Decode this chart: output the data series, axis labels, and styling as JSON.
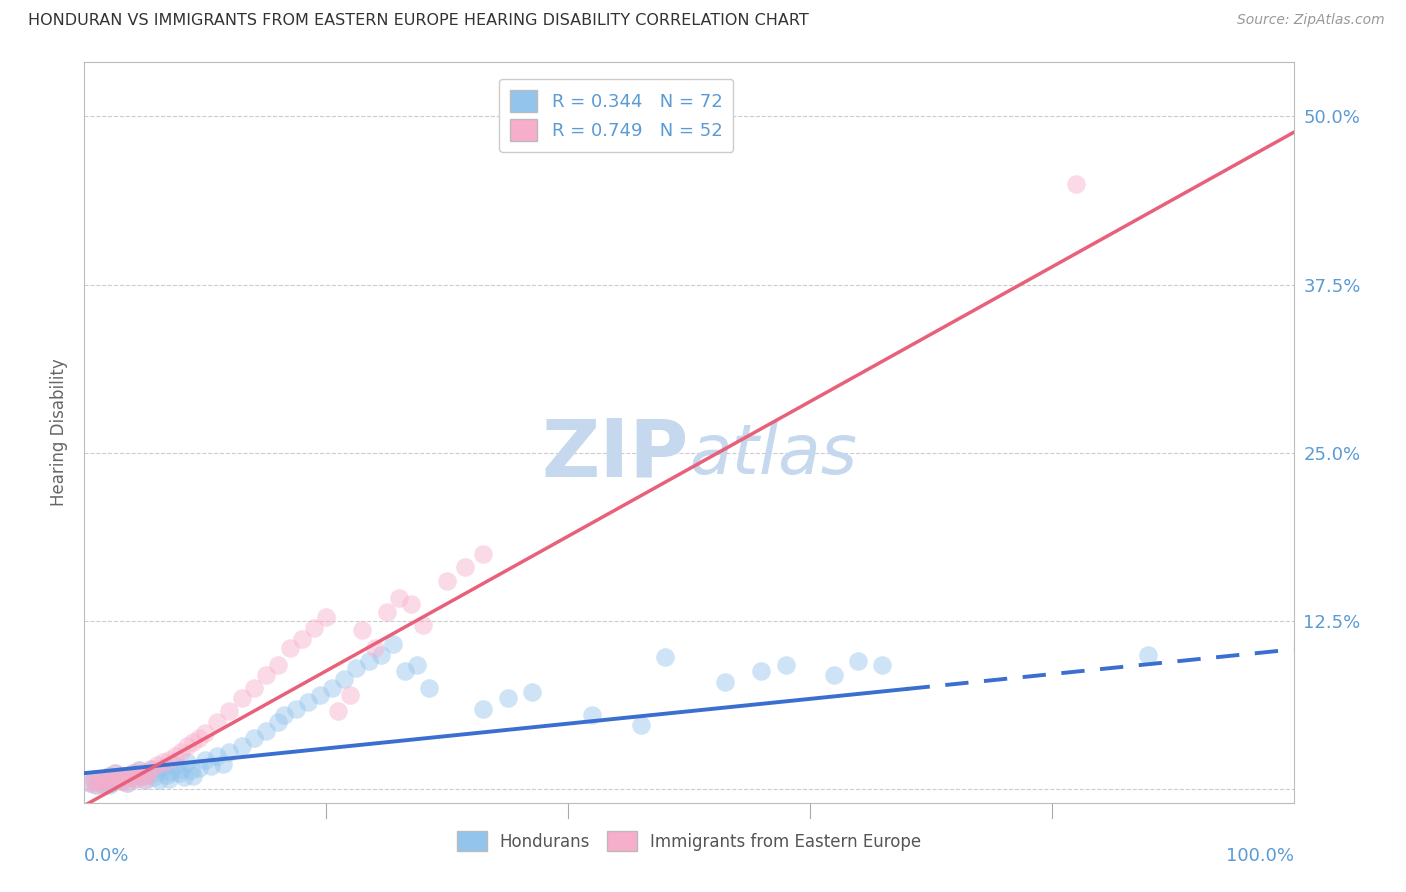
{
  "title": "HONDURAN VS IMMIGRANTS FROM EASTERN EUROPE HEARING DISABILITY CORRELATION CHART",
  "source": "Source: ZipAtlas.com",
  "ylabel": "Hearing Disability",
  "yticks": [
    0.0,
    0.125,
    0.25,
    0.375,
    0.5
  ],
  "ytick_labels": [
    "",
    "12.5%",
    "25.0%",
    "37.5%",
    "50.0%"
  ],
  "xlim": [
    0.0,
    1.0
  ],
  "ylim": [
    -0.01,
    0.54
  ],
  "legend_r1": "R = 0.344",
  "legend_n1": "N = 72",
  "legend_r2": "R = 0.749",
  "legend_n2": "N = 52",
  "color_blue": "#93C4EC",
  "color_pink": "#F7AECB",
  "color_blue_line": "#3A6FD0",
  "color_pink_line": "#E8607A",
  "color_title": "#333333",
  "color_axis_labels": "#5B9BD5",
  "watermark_color": "#C5D8EE",
  "background_color": "#FFFFFF",
  "blue_line_x_solid_end": 0.68,
  "blue_line_slope": 0.092,
  "blue_line_intercept": 0.012,
  "pink_line_slope": 0.5,
  "pink_line_intercept": -0.012,
  "hondurans_x": [
    0.005,
    0.008,
    0.01,
    0.012,
    0.015,
    0.018,
    0.02,
    0.022,
    0.025,
    0.028,
    0.03,
    0.032,
    0.035,
    0.038,
    0.04,
    0.042,
    0.045,
    0.048,
    0.05,
    0.052,
    0.055,
    0.058,
    0.06,
    0.062,
    0.065,
    0.068,
    0.07,
    0.072,
    0.075,
    0.078,
    0.08,
    0.082,
    0.085,
    0.088,
    0.09,
    0.095,
    0.1,
    0.105,
    0.11,
    0.115,
    0.12,
    0.13,
    0.14,
    0.15,
    0.16,
    0.165,
    0.175,
    0.185,
    0.195,
    0.205,
    0.215,
    0.225,
    0.235,
    0.245,
    0.255,
    0.265,
    0.275,
    0.285,
    0.33,
    0.35,
    0.37,
    0.42,
    0.46,
    0.48,
    0.53,
    0.56,
    0.58,
    0.62,
    0.64,
    0.66,
    0.88,
    0.02
  ],
  "hondurans_y": [
    0.005,
    0.008,
    0.003,
    0.006,
    0.004,
    0.007,
    0.01,
    0.005,
    0.012,
    0.008,
    0.006,
    0.01,
    0.005,
    0.009,
    0.012,
    0.008,
    0.014,
    0.01,
    0.007,
    0.011,
    0.015,
    0.009,
    0.013,
    0.007,
    0.016,
    0.011,
    0.008,
    0.013,
    0.018,
    0.012,
    0.015,
    0.009,
    0.02,
    0.014,
    0.01,
    0.016,
    0.022,
    0.017,
    0.025,
    0.019,
    0.028,
    0.032,
    0.038,
    0.043,
    0.05,
    0.055,
    0.06,
    0.065,
    0.07,
    0.075,
    0.082,
    0.09,
    0.095,
    0.1,
    0.108,
    0.088,
    0.092,
    0.075,
    0.06,
    0.068,
    0.072,
    0.055,
    0.048,
    0.098,
    0.08,
    0.088,
    0.092,
    0.085,
    0.095,
    0.092,
    0.1,
    0.003
  ],
  "eastern_europe_x": [
    0.005,
    0.008,
    0.01,
    0.012,
    0.015,
    0.018,
    0.02,
    0.022,
    0.025,
    0.028,
    0.03,
    0.032,
    0.035,
    0.038,
    0.04,
    0.042,
    0.045,
    0.048,
    0.05,
    0.052,
    0.055,
    0.06,
    0.065,
    0.07,
    0.075,
    0.08,
    0.085,
    0.09,
    0.095,
    0.1,
    0.11,
    0.12,
    0.13,
    0.14,
    0.15,
    0.16,
    0.17,
    0.18,
    0.19,
    0.2,
    0.21,
    0.22,
    0.23,
    0.24,
    0.25,
    0.26,
    0.27,
    0.28,
    0.3,
    0.315,
    0.33,
    0.82
  ],
  "eastern_europe_y": [
    0.005,
    0.008,
    0.003,
    0.006,
    0.004,
    0.007,
    0.01,
    0.005,
    0.012,
    0.008,
    0.006,
    0.01,
    0.005,
    0.009,
    0.012,
    0.008,
    0.014,
    0.01,
    0.007,
    0.011,
    0.015,
    0.018,
    0.02,
    0.022,
    0.025,
    0.028,
    0.032,
    0.035,
    0.038,
    0.042,
    0.05,
    0.058,
    0.068,
    0.075,
    0.085,
    0.092,
    0.105,
    0.112,
    0.12,
    0.128,
    0.058,
    0.07,
    0.118,
    0.105,
    0.132,
    0.142,
    0.138,
    0.122,
    0.155,
    0.165,
    0.175,
    0.45
  ]
}
